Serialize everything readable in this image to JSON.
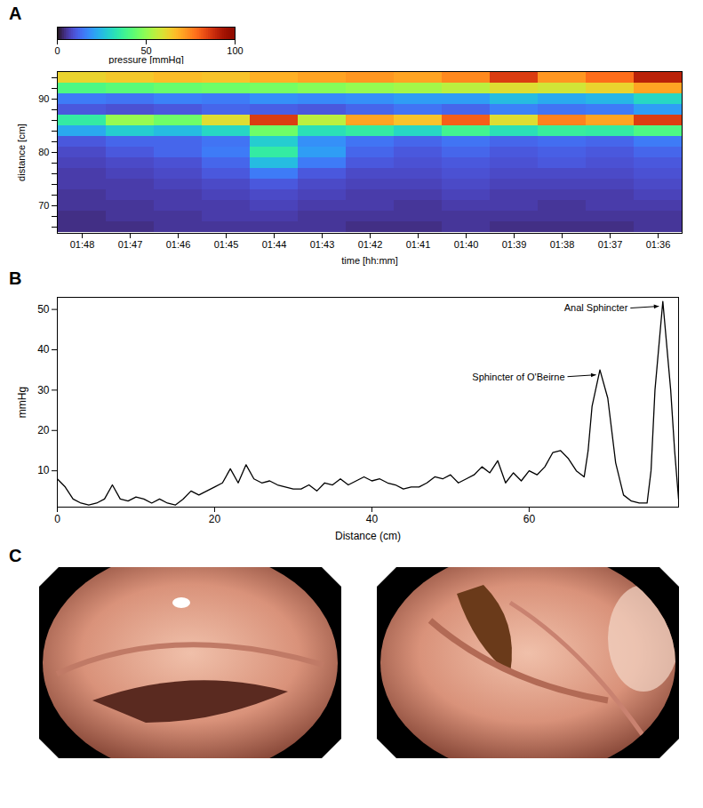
{
  "chart_data": [
    {
      "panel": "A",
      "type": "heatmap",
      "x_label": "time [hh:mm]",
      "y_label": "distance [cm]",
      "x": [
        "01:48",
        "01:47",
        "01:46",
        "01:45",
        "01:44",
        "01:43",
        "01:42",
        "01:41",
        "01:40",
        "01:39",
        "01:38",
        "01:37",
        "01:36"
      ],
      "xticks": [
        "01:48",
        "01:47",
        "01:46",
        "01:45",
        "01:44",
        "01:43",
        "01:42",
        "01:41",
        "01:40",
        "01:39",
        "01:38",
        "01:37",
        "01:36"
      ],
      "y": [
        94,
        92,
        90,
        88,
        86,
        84,
        82,
        80,
        78,
        76,
        74,
        72,
        70,
        68,
        66
      ],
      "yticks": [
        70,
        80,
        90
      ],
      "values": [
        [
          62,
          64,
          66,
          65,
          68,
          70,
          72,
          70,
          74,
          85,
          72,
          78,
          90
        ],
        [
          40,
          42,
          44,
          45,
          46,
          48,
          50,
          52,
          55,
          60,
          58,
          62,
          70
        ],
        [
          15,
          14,
          16,
          15,
          18,
          17,
          18,
          20,
          20,
          25,
          22,
          24,
          30
        ],
        [
          10,
          9,
          10,
          12,
          11,
          10,
          12,
          14,
          12,
          16,
          14,
          15,
          20
        ],
        [
          35,
          50,
          45,
          60,
          85,
          55,
          70,
          65,
          80,
          60,
          75,
          70,
          85
        ],
        [
          22,
          28,
          25,
          30,
          45,
          32,
          35,
          30,
          38,
          32,
          36,
          35,
          40
        ],
        [
          10,
          12,
          12,
          14,
          28,
          18,
          14,
          12,
          14,
          12,
          13,
          12,
          15
        ],
        [
          8,
          10,
          12,
          15,
          35,
          20,
          12,
          10,
          12,
          10,
          11,
          10,
          12
        ],
        [
          7,
          8,
          9,
          12,
          25,
          15,
          10,
          9,
          10,
          9,
          10,
          9,
          10
        ],
        [
          6,
          7,
          8,
          10,
          15,
          10,
          8,
          8,
          9,
          8,
          8,
          8,
          9
        ],
        [
          6,
          6,
          7,
          8,
          10,
          8,
          7,
          7,
          8,
          7,
          7,
          7,
          8
        ],
        [
          5,
          6,
          6,
          7,
          8,
          7,
          6,
          6,
          7,
          6,
          6,
          6,
          7
        ],
        [
          5,
          5,
          6,
          6,
          7,
          6,
          6,
          5,
          6,
          6,
          5,
          6,
          6
        ],
        [
          4,
          5,
          5,
          6,
          6,
          5,
          5,
          5,
          5,
          5,
          5,
          5,
          5
        ],
        [
          4,
          4,
          5,
          5,
          5,
          5,
          4,
          4,
          5,
          4,
          4,
          4,
          5
        ]
      ],
      "colorbar": {
        "label": "pressure [mmHg]",
        "range": [
          0,
          100
        ],
        "ticks": [
          0,
          50,
          100
        ]
      }
    },
    {
      "panel": "B",
      "type": "line",
      "x_label": "Distance (cm)",
      "y_label": "mmHg",
      "xlim": [
        0,
        79
      ],
      "xticks": [
        0,
        20,
        40,
        60
      ],
      "ylim": [
        1,
        53
      ],
      "yticks": [
        10,
        20,
        30,
        40,
        50
      ],
      "color": "#000000",
      "x": [
        0,
        1,
        2,
        3,
        4,
        5,
        6,
        7,
        8,
        9,
        10,
        11,
        12,
        13,
        14,
        15,
        16,
        17,
        18,
        19,
        20,
        21,
        22,
        23,
        24,
        25,
        26,
        27,
        28,
        29,
        30,
        31,
        32,
        33,
        34,
        35,
        36,
        37,
        38,
        39,
        40,
        41,
        42,
        43,
        44,
        45,
        46,
        47,
        48,
        49,
        50,
        51,
        52,
        53,
        54,
        55,
        56,
        57,
        58,
        59,
        60,
        61,
        62,
        63,
        64,
        65,
        66,
        67,
        67.5,
        68,
        69,
        70,
        71,
        72,
        73,
        74,
        75,
        75.5,
        76,
        77,
        78,
        78.5,
        79
      ],
      "values": [
        8,
        6,
        3,
        2,
        1.5,
        2,
        3,
        6.5,
        3,
        2.5,
        3.5,
        3,
        2,
        3,
        2,
        1.5,
        3,
        5,
        4,
        5,
        6,
        7,
        10.5,
        7,
        11.5,
        8,
        7,
        7.5,
        6.5,
        6,
        5.5,
        5.5,
        6.5,
        5,
        7,
        6.5,
        8,
        6.5,
        7.5,
        8.5,
        7.5,
        8,
        7,
        6.5,
        5.5,
        6,
        6,
        7,
        8.5,
        8,
        9,
        7,
        8,
        9,
        11,
        9.5,
        12.5,
        7,
        9.5,
        7.5,
        10,
        9,
        11,
        14.5,
        15,
        13,
        10,
        8.5,
        15,
        26,
        35,
        28,
        12,
        4,
        2.5,
        2,
        2,
        10,
        30,
        52,
        30,
        15,
        3
      ],
      "annotations": [
        {
          "text": "Sphincter of O'Beirne",
          "x": 69,
          "y": 35
        },
        {
          "text": "Anal Sphincter",
          "x": 77,
          "y": 52
        }
      ]
    }
  ],
  "photos": {
    "panel": "C"
  }
}
